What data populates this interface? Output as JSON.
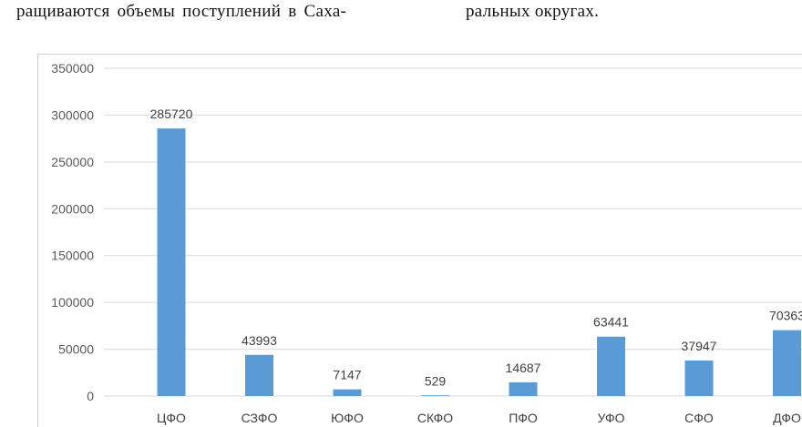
{
  "document": {
    "line_left": "ращиваются объемы поступлений в Саха-",
    "line_right": "ральных округах."
  },
  "chart_data": {
    "type": "bar",
    "categories": [
      "ЦФО",
      "СЗФО",
      "ЮФО",
      "СКФО",
      "ПФО",
      "УФО",
      "СФО",
      "ДФО"
    ],
    "values": [
      285720,
      43993,
      7147,
      529,
      14687,
      63441,
      37947,
      70363
    ],
    "ylim": [
      0,
      350000
    ],
    "yticks": [
      0,
      50000,
      100000,
      150000,
      200000,
      250000,
      300000,
      350000
    ],
    "grid": true,
    "legend": "none",
    "colors": {
      "bar": "#5b9bd5",
      "grid": "#d9d9d9"
    }
  }
}
